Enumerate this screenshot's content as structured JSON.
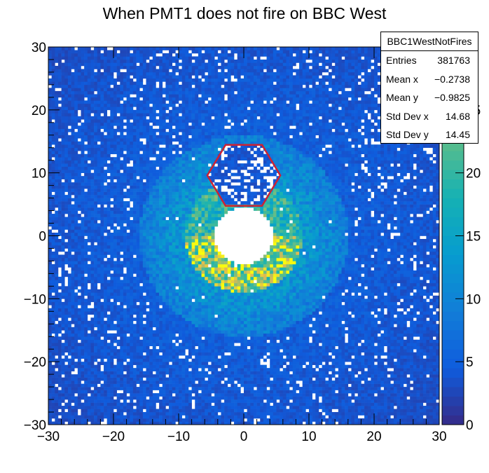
{
  "chart_data": {
    "type": "heatmap",
    "title": "When PMT1 does not fire on BBC West",
    "xlabel": "",
    "ylabel": "",
    "xlim": [
      -30,
      30
    ],
    "ylim": [
      -30,
      30
    ],
    "x_ticks": [
      "−30",
      "−20",
      "−10",
      "0",
      "10",
      "20",
      "30"
    ],
    "y_ticks": [
      "−30",
      "−20",
      "−10",
      "0",
      "10",
      "20",
      "30"
    ],
    "colorbar": {
      "range": [
        0,
        30
      ],
      "ticks": [
        "0",
        "5",
        "10",
        "15",
        "20",
        "25"
      ],
      "palette": "kBird"
    },
    "features": {
      "central_hole_radius": 4.5,
      "inner_ring": {
        "r_inner": 4.5,
        "r_outer": 9,
        "level": 22
      },
      "middle_ring": {
        "r_inner": 9,
        "r_outer": 16,
        "level": 13
      },
      "outer_background_level": 5,
      "highlighted_hexagon": {
        "center": [
          0,
          9.6
        ],
        "radius": 5.6,
        "color": "#cc2233"
      }
    },
    "stats": {
      "name": "BBC1WestNotFires",
      "rows": [
        {
          "label": "Entries",
          "value": "381763"
        },
        {
          "label": "Mean x",
          "value": "−0.2738"
        },
        {
          "label": "Mean y",
          "value": "−0.9825"
        },
        {
          "label": "Std Dev x",
          "value": "14.68"
        },
        {
          "label": "Std Dev y",
          "value": "14.45"
        }
      ]
    }
  }
}
